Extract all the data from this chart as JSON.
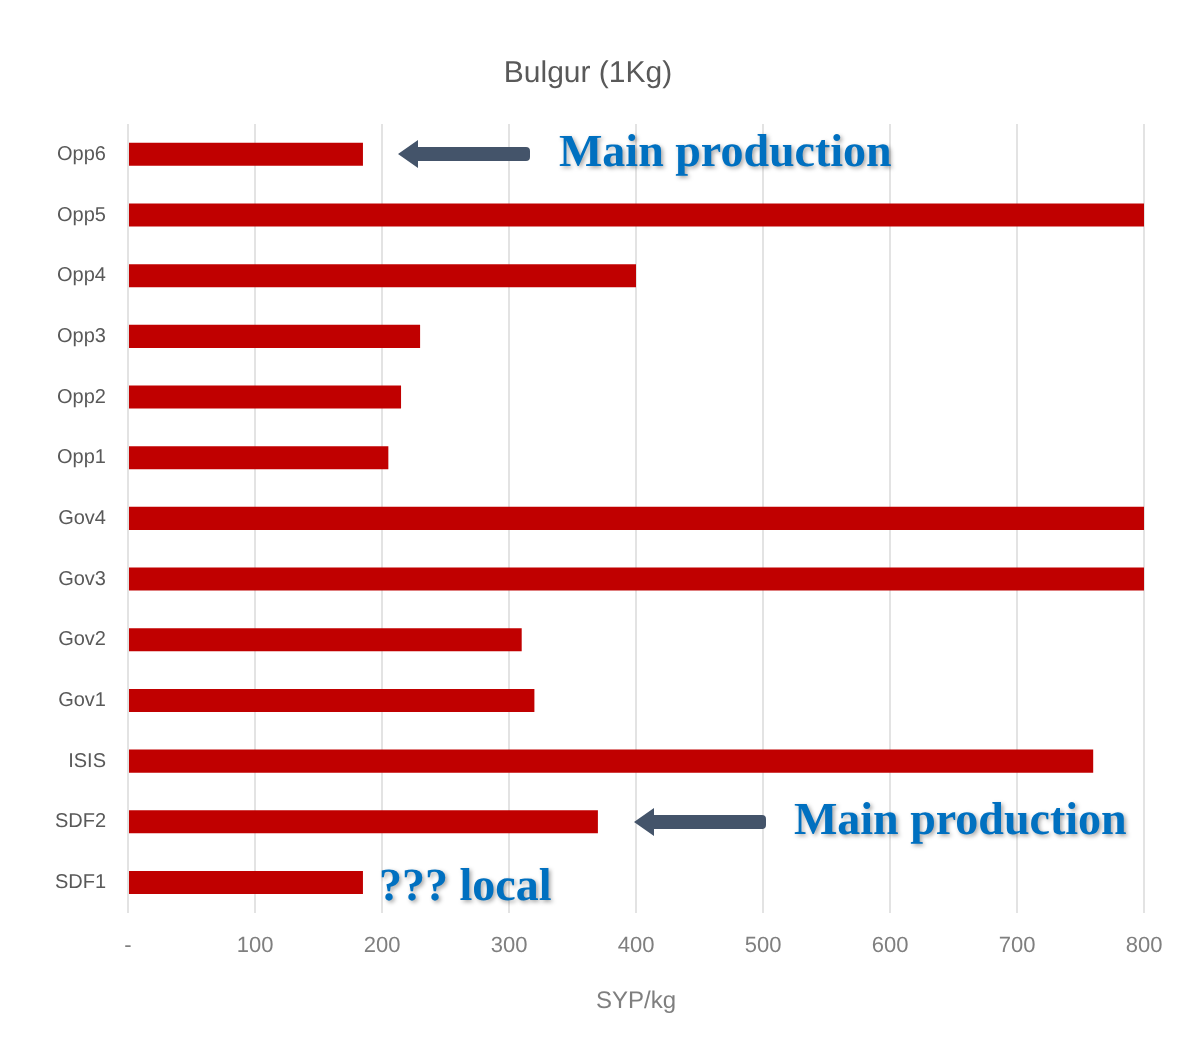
{
  "chart_data": {
    "type": "bar",
    "orientation": "horizontal",
    "title": "Bulgur (1Kg)",
    "xlabel": "SYP/kg",
    "categories": [
      "Opp6",
      "Opp5",
      "Opp4",
      "Opp3",
      "Opp2",
      "Opp1",
      "Gov4",
      "Gov3",
      "Gov2",
      "Gov1",
      "ISIS",
      "SDF2",
      "SDF1"
    ],
    "values": [
      185,
      800,
      400,
      230,
      215,
      205,
      800,
      800,
      310,
      320,
      760,
      370,
      185
    ],
    "color": "#c00000",
    "xlim": [
      0,
      800
    ],
    "xticks": [
      {
        "value": 0,
        "label": "-"
      },
      100,
      200,
      300,
      400,
      500,
      600,
      700,
      800
    ],
    "grid": "x",
    "legend": false,
    "annotations": [
      "Main production",
      "Main production",
      "??? local"
    ]
  }
}
